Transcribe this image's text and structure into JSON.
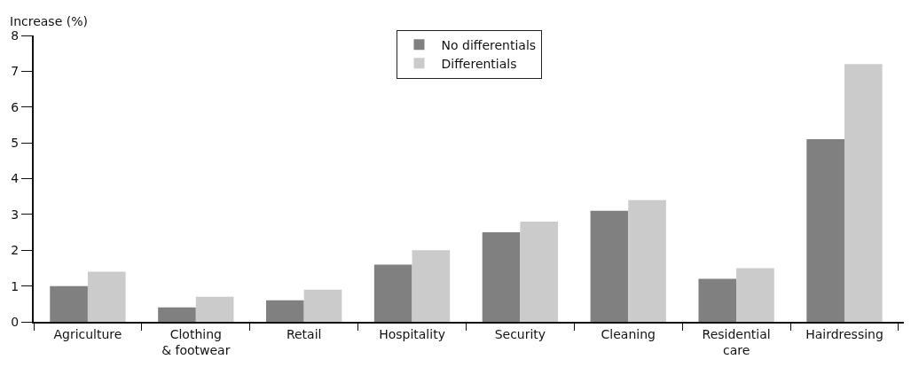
{
  "chart_data": {
    "type": "bar",
    "ylabel": "Increase (%)",
    "categories": [
      "Agriculture",
      "Clothing\n& footwear",
      "Retail",
      "Hospitality",
      "Security",
      "Cleaning",
      "Residential\ncare",
      "Hairdressing"
    ],
    "series": [
      {
        "name": "No differentials",
        "color": "#808080",
        "values": [
          1.0,
          0.4,
          0.6,
          1.6,
          2.5,
          3.1,
          1.2,
          5.1
        ]
      },
      {
        "name": "Differentials",
        "color": "#cbcbcb",
        "values": [
          1.4,
          0.7,
          0.9,
          2.0,
          2.8,
          3.4,
          1.5,
          7.2
        ]
      }
    ],
    "ylim": [
      0,
      8
    ],
    "yticks": [
      0,
      1,
      2,
      3,
      4,
      5,
      6,
      7,
      8
    ],
    "grid": false,
    "legend": "top"
  }
}
